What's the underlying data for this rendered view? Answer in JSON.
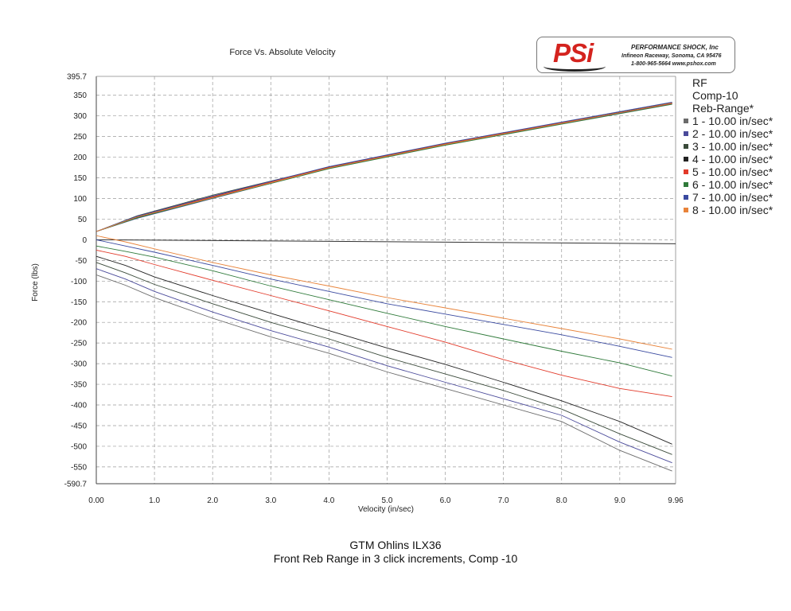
{
  "chart_data": {
    "type": "line",
    "title": "Force Vs. Absolute Velocity",
    "xlabel": "Velocity (in/sec)",
    "ylabel": "Force (lbs)",
    "xlim": [
      0.0,
      9.96
    ],
    "ylim": [
      -590.7,
      395.7
    ],
    "x_ticks": [
      "0.00",
      "1.0",
      "2.0",
      "3.0",
      "4.0",
      "5.0",
      "6.0",
      "7.0",
      "8.0",
      "9.0",
      "9.96"
    ],
    "x_tick_values": [
      0,
      1,
      2,
      3,
      4,
      5,
      6,
      7,
      8,
      9,
      9.96
    ],
    "y_ticks": [
      "395.7",
      "350",
      "300",
      "250",
      "200",
      "150",
      "100",
      "50",
      "0",
      "-50",
      "-100",
      "-150",
      "-200",
      "-250",
      "-300",
      "-350",
      "-400",
      "-450",
      "-500",
      "-550",
      "-590.7"
    ],
    "y_tick_values": [
      395.7,
      350,
      300,
      250,
      200,
      150,
      100,
      50,
      0,
      -50,
      -100,
      -150,
      -200,
      -250,
      -300,
      -350,
      -400,
      -450,
      -500,
      -550,
      -590.7
    ],
    "grid": true,
    "legend_position": "right",
    "legend_title": "RF Comp-10 Reb-Range*",
    "series": [
      {
        "name": "1 - 10.00 in/sec*",
        "color": "#6b6b6b",
        "compression": {
          "x": [
            0,
            0.7,
            2,
            4,
            6,
            8,
            9.9
          ],
          "y": [
            20,
            55,
            105,
            175,
            232,
            283,
            330
          ]
        },
        "rebound": {
          "x": [
            0,
            0.5,
            1,
            2,
            3,
            4,
            5,
            6,
            7,
            8,
            9,
            9.9
          ],
          "y": [
            -85,
            -110,
            -140,
            -190,
            -235,
            -275,
            -320,
            -360,
            -400,
            -440,
            -510,
            -560
          ]
        }
      },
      {
        "name": "2 - 10.00 in/sec*",
        "color": "#4a4a9a",
        "compression": {
          "x": [
            0,
            0.7,
            2,
            4,
            6,
            8,
            9.9
          ],
          "y": [
            20,
            52,
            100,
            173,
            230,
            281,
            329
          ]
        },
        "rebound": {
          "x": [
            0,
            0.5,
            1,
            2,
            3,
            4,
            5,
            6,
            7,
            8,
            9,
            9.9
          ],
          "y": [
            -70,
            -95,
            -125,
            -175,
            -220,
            -260,
            -305,
            -345,
            -385,
            -425,
            -490,
            -540
          ]
        }
      },
      {
        "name": "3 - 10.00 in/sec*",
        "color": "#3a4a3a",
        "compression": {
          "x": [
            0,
            0.7,
            2,
            4,
            6,
            8,
            9.9
          ],
          "y": [
            20,
            58,
            108,
            176,
            233,
            284,
            331
          ]
        },
        "rebound": {
          "x": [
            0,
            0.5,
            1,
            2,
            3,
            4,
            5,
            6,
            7,
            8,
            9,
            9.9
          ],
          "y": [
            -55,
            -80,
            -108,
            -155,
            -200,
            -240,
            -285,
            -325,
            -365,
            -410,
            -470,
            -520
          ]
        }
      },
      {
        "name": "4 - 10.00 in/sec*",
        "color": "#222222",
        "compression": {
          "x": [
            0,
            0.7,
            2,
            4,
            6,
            8,
            9.9
          ],
          "y": [
            20,
            54,
            103,
            174,
            231,
            282,
            332
          ]
        },
        "rebound": {
          "x": [
            0,
            0.5,
            1,
            2,
            3,
            4,
            5,
            6,
            7,
            8,
            9,
            9.9
          ],
          "y": [
            -40,
            -62,
            -90,
            -135,
            -178,
            -220,
            -262,
            -302,
            -345,
            -390,
            -440,
            -495
          ]
        }
      },
      {
        "name": "5 - 10.00 in/sec*",
        "color": "#e23a2a",
        "compression": {
          "x": [
            0,
            0.7,
            2,
            4,
            6,
            8,
            9.9
          ],
          "y": [
            20,
            56,
            104,
            175,
            232,
            283,
            330
          ]
        },
        "rebound": {
          "x": [
            0,
            0.5,
            1,
            2,
            3,
            4,
            5,
            6,
            7,
            8,
            9,
            9.9
          ],
          "y": [
            -25,
            -40,
            -60,
            -98,
            -135,
            -172,
            -210,
            -248,
            -290,
            -328,
            -360,
            -380
          ]
        }
      },
      {
        "name": "6 - 10.00 in/sec*",
        "color": "#2f7a3a",
        "compression": {
          "x": [
            0,
            0.7,
            2,
            4,
            6,
            8,
            9.9
          ],
          "y": [
            20,
            53,
            101,
            172,
            229,
            280,
            328
          ]
        },
        "rebound": {
          "x": [
            0,
            0.5,
            1,
            2,
            3,
            4,
            5,
            6,
            7,
            8,
            9,
            9.9
          ],
          "y": [
            -15,
            -28,
            -42,
            -75,
            -112,
            -145,
            -178,
            -210,
            -240,
            -270,
            -298,
            -330
          ]
        }
      },
      {
        "name": "7 - 10.00 in/sec*",
        "color": "#3a4aa0",
        "compression": {
          "x": [
            0,
            0.7,
            2,
            4,
            6,
            8,
            9.9
          ],
          "y": [
            20,
            57,
            106,
            177,
            234,
            285,
            333
          ]
        },
        "rebound": {
          "x": [
            0,
            0.5,
            1,
            2,
            3,
            4,
            5,
            6,
            7,
            8,
            9,
            9.9
          ],
          "y": [
            0,
            -15,
            -30,
            -62,
            -95,
            -125,
            -155,
            -180,
            -205,
            -230,
            -258,
            -285
          ]
        }
      },
      {
        "name": "8 - 10.00 in/sec*",
        "color": "#e8833a",
        "compression": {
          "x": [
            0,
            0.7,
            2,
            4,
            6,
            8,
            9.9
          ],
          "y": [
            20,
            55,
            102,
            174,
            231,
            282,
            331
          ]
        },
        "rebound": {
          "x": [
            0,
            0.5,
            1,
            2,
            3,
            4,
            5,
            6,
            7,
            8,
            9,
            9.9
          ],
          "y": [
            10,
            -5,
            -22,
            -55,
            -85,
            -112,
            -140,
            -165,
            -190,
            -215,
            -240,
            -265
          ]
        }
      }
    ]
  },
  "logo": {
    "mark": "PSi",
    "company": "PERFORMANCE SHOCK, Inc",
    "address": "Infineon Raceway, Sonoma, CA 95476",
    "contact": "1-800-965-5664    www.pshox.com",
    "color": "#d4231e"
  },
  "legend": {
    "title_lines": [
      "RF",
      "Comp-10",
      "Reb-Range*"
    ]
  },
  "footer": {
    "line1": "GTM Ohlins ILX36",
    "line2": "Front Reb Range in 3 click increments, Comp -10"
  }
}
